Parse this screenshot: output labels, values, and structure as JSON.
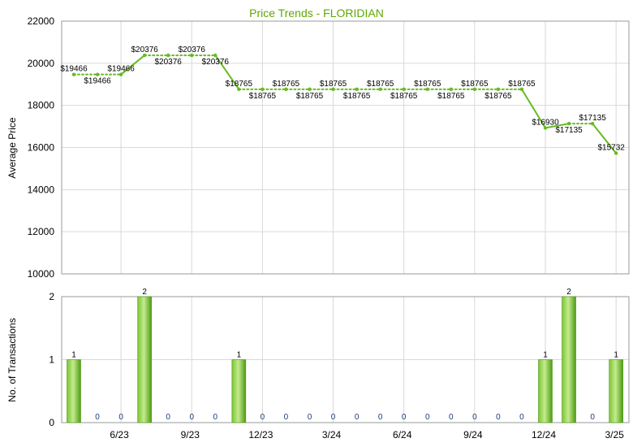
{
  "colors": {
    "line": "#66bb22",
    "bar_light": "#b5e27c",
    "bar_dark": "#5ea81e",
    "grid": "#d9d9d9",
    "title": "#5fa800",
    "zero_label": "#1a3d7a"
  },
  "chart_data": [
    {
      "type": "line",
      "title": "Price Trends - FLORIDIAN",
      "ylabel": "Average Price",
      "ylim": [
        10000,
        22000
      ],
      "yticks": [
        10000,
        12000,
        14000,
        16000,
        18000,
        20000,
        22000
      ],
      "x": [
        0,
        1,
        2,
        3,
        4,
        5,
        6,
        7,
        8,
        9,
        10,
        11,
        12,
        13,
        14,
        15,
        16,
        17,
        18,
        19,
        20,
        21,
        22,
        23
      ],
      "values": [
        19466,
        19466,
        19466,
        20376,
        20376,
        20376,
        20376,
        18765,
        18765,
        18765,
        18765,
        18765,
        18765,
        18765,
        18765,
        18765,
        18765,
        18765,
        18765,
        18765,
        16930,
        17135,
        17135,
        15732
      ],
      "labels": [
        "$19466",
        "$19466",
        "$19466",
        "$20376",
        "$20376",
        "$20376",
        "$20376",
        "$18765",
        "$18765",
        "$18765",
        "$18765",
        "$18765",
        "$18765",
        "$18765",
        "$18765",
        "$18765",
        "$18765",
        "$18765",
        "$18765",
        "$18765",
        "$16930",
        "$17135",
        "$17135",
        "$15732"
      ],
      "actual_points": [
        0,
        2,
        3,
        6,
        7,
        20,
        21,
        22,
        23
      ],
      "grid": true
    },
    {
      "type": "bar",
      "ylabel": "No. of Transactions",
      "ylim": [
        0,
        2
      ],
      "yticks": [
        0,
        1,
        2
      ],
      "x": [
        0,
        1,
        2,
        3,
        4,
        5,
        6,
        7,
        8,
        9,
        10,
        11,
        12,
        13,
        14,
        15,
        16,
        17,
        18,
        19,
        20,
        21,
        22,
        23
      ],
      "values": [
        1,
        0,
        0,
        2,
        0,
        0,
        0,
        1,
        0,
        0,
        0,
        0,
        0,
        0,
        0,
        0,
        0,
        0,
        0,
        0,
        1,
        2,
        0,
        1
      ],
      "value_labels": [
        "1",
        "0",
        "0",
        "2",
        "0",
        "0",
        "0",
        "1",
        "0",
        "0",
        "0",
        "0",
        "0",
        "0",
        "0",
        "0",
        "0",
        "0",
        "0",
        "0",
        "1",
        "2",
        "0",
        "1"
      ],
      "xtick_positions": [
        2,
        5,
        8,
        11,
        14,
        17,
        20,
        23
      ],
      "xtick_labels": [
        "6/23",
        "9/23",
        "12/23",
        "3/24",
        "6/24",
        "9/24",
        "12/24",
        "3/25"
      ],
      "grid": true
    }
  ]
}
